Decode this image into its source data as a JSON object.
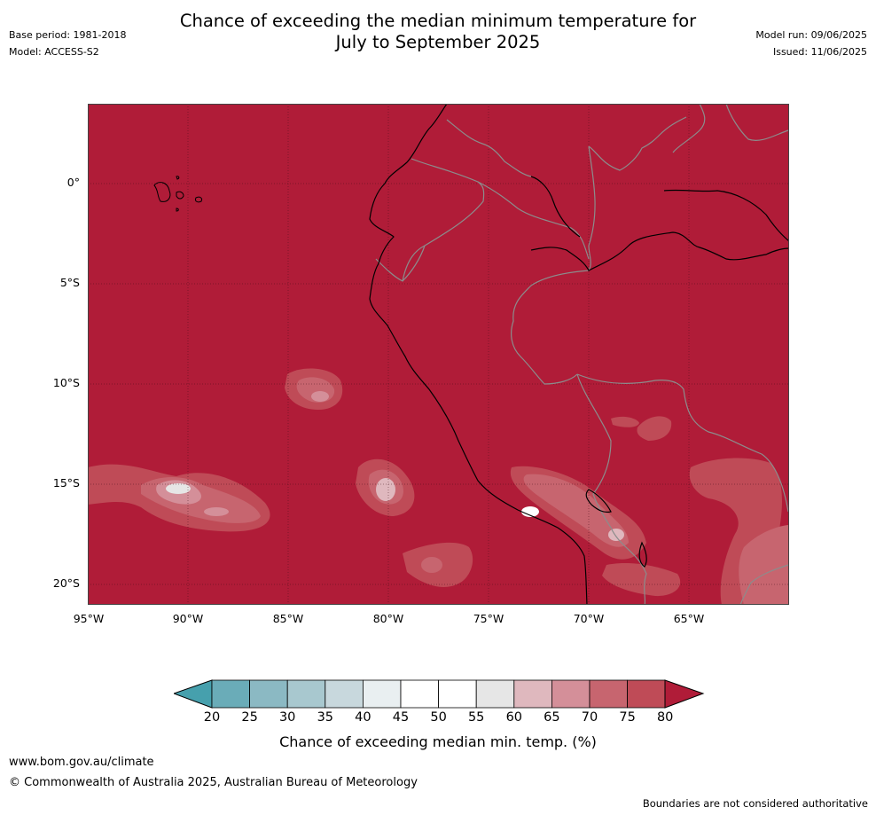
{
  "header": {
    "title_line1": "Chance of exceeding the median minimum temperature for",
    "title_line2": "July to September 2025",
    "base_period": "Base period: 1981-2018",
    "model": "Model: ACCESS-S2",
    "model_run": "Model run: 09/06/2025",
    "issued": "Issued: 11/06/2025"
  },
  "map": {
    "background_color": "#b01c38",
    "lat_labels": [
      "0°",
      "5°S",
      "10°S",
      "15°S",
      "20°S"
    ],
    "lon_labels": [
      "95°W",
      "90°W",
      "85°W",
      "80°W",
      "75°W",
      "70°W",
      "65°W"
    ]
  },
  "colorbar": {
    "ticks": [
      "20",
      "25",
      "30",
      "35",
      "40",
      "45",
      "50",
      "55",
      "60",
      "65",
      "70",
      "75",
      "80"
    ],
    "colors": [
      "#6aacb8",
      "#8bb9c3",
      "#a8c8cf",
      "#c8d8dd",
      "#e9eff1",
      "#ffffff",
      "#ffffff",
      "#e6e6e6",
      "#dfb8be",
      "#d48f99",
      "#c7656f",
      "#bf4b57"
    ],
    "below_color": "#46a0ad",
    "above_color": "#b01c38",
    "title": "Chance of exceeding median min. temp. (%)"
  },
  "footer": {
    "website": "www.bom.gov.au/climate",
    "copyright": "© Commonwealth of Australia 2025, Australian Bureau of Meteorology",
    "disclaimer": "Boundaries are not considered authoritative"
  }
}
